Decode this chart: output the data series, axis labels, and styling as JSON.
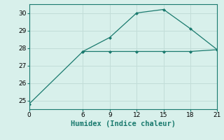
{
  "line1_x": [
    0,
    6,
    9,
    12,
    15,
    18,
    21
  ],
  "line1_y": [
    24.8,
    27.8,
    28.6,
    30.0,
    30.2,
    29.1,
    27.9
  ],
  "line2_x": [
    6,
    9,
    12,
    15,
    18,
    21
  ],
  "line2_y": [
    27.8,
    27.8,
    27.8,
    27.8,
    27.8,
    27.9
  ],
  "line_color": "#1a7a6e",
  "bg_color": "#d8f0eb",
  "grid_color": "#c2ddd8",
  "xlabel": "Humidex (Indice chaleur)",
  "xlim": [
    0,
    21
  ],
  "ylim": [
    24.5,
    30.5
  ],
  "xticks": [
    0,
    6,
    9,
    12,
    15,
    18,
    21
  ],
  "yticks": [
    25,
    26,
    27,
    28,
    29,
    30
  ],
  "xlabel_fontsize": 7.5,
  "tick_fontsize": 6.5
}
